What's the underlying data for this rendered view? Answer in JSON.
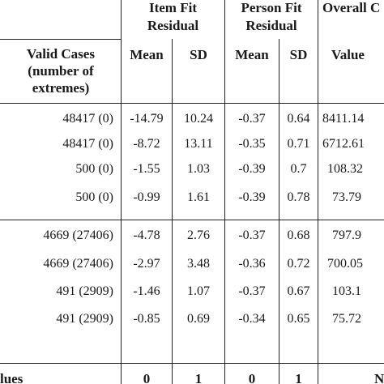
{
  "headers": {
    "item_fit_line1": "Item Fit",
    "item_fit_line2": "Residual",
    "person_fit_line1": "Person Fit",
    "person_fit_line2": "Residual",
    "overall": "Overall C",
    "valid_cases_line1": "Valid Cases",
    "valid_cases_line2": "(number of",
    "valid_cases_line3": "extremes)",
    "mean_item": "Mean",
    "sd_item": "SD",
    "mean_person": "Mean",
    "sd_person": "SD",
    "value": "Value"
  },
  "rows": [
    {
      "valid": "48417 (0)",
      "item_mean": "-14.79",
      "item_sd": "10.24",
      "person_mean": "-0.37",
      "person_sd": "0.64",
      "value": "8411.14"
    },
    {
      "valid": "48417 (0)",
      "item_mean": "-8.72",
      "item_sd": "13.11",
      "person_mean": "-0.35",
      "person_sd": "0.71",
      "value": "6712.61"
    },
    {
      "valid": "500 (0)",
      "item_mean": "-1.55",
      "item_sd": "1.03",
      "person_mean": "-0.39",
      "person_sd": "0.7",
      "value": "108.32"
    },
    {
      "valid": "500 (0)",
      "item_mean": "-0.99",
      "item_sd": "1.61",
      "person_mean": "-0.39",
      "person_sd": "0.78",
      "value": "73.79"
    },
    {
      "valid": "4669 (27406)",
      "item_mean": "-4.78",
      "item_sd": "2.76",
      "person_mean": "-0.37",
      "person_sd": "0.68",
      "value": "797.9"
    },
    {
      "valid": "4669 (27406)",
      "item_mean": "-2.97",
      "item_sd": "3.48",
      "person_mean": "-0.36",
      "person_sd": "0.72",
      "value": "700.05"
    },
    {
      "valid": "491 (2909)",
      "item_mean": "-1.46",
      "item_sd": "1.07",
      "person_mean": "-0.37",
      "person_sd": "0.67",
      "value": "103.1"
    },
    {
      "valid": "491 (2909)",
      "item_mean": "-0.85",
      "item_sd": "0.69",
      "person_mean": "-0.34",
      "person_sd": "0.65",
      "value": "75.72"
    }
  ],
  "footer": {
    "label": "lues",
    "item_mean": "0",
    "item_sd": "1",
    "person_mean": "0",
    "person_sd": "1",
    "value": "N"
  }
}
